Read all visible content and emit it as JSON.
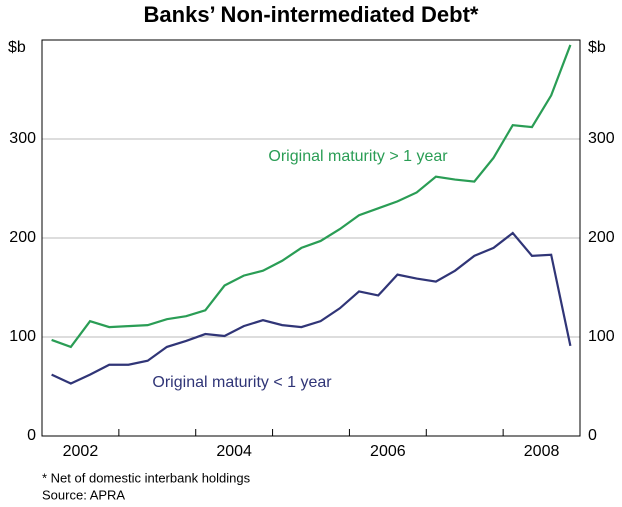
{
  "chart_data": {
    "type": "line",
    "title": "Banks’ Non-intermediated Debt*",
    "unit_label": "$b",
    "x": [
      2002.125,
      2002.375,
      2002.625,
      2002.875,
      2003.125,
      2003.375,
      2003.625,
      2003.875,
      2004.125,
      2004.375,
      2004.625,
      2004.875,
      2005.125,
      2005.375,
      2005.625,
      2005.875,
      2006.125,
      2006.375,
      2006.625,
      2006.875,
      2007.125,
      2007.375,
      2007.625,
      2007.875,
      2008.125,
      2008.375,
      2008.625,
      2008.875
    ],
    "series": [
      {
        "name": "Original maturity > 1 year",
        "color": "#2a9d55",
        "values": [
          97,
          90,
          116,
          110,
          111,
          112,
          118,
          121,
          127,
          152,
          162,
          167,
          177,
          190,
          197,
          209,
          223,
          230,
          237,
          246,
          262,
          259,
          257,
          281,
          314,
          312,
          344,
          395
        ]
      },
      {
        "name": "Original maturity < 1 year",
        "color": "#303577",
        "values": [
          62,
          53,
          62,
          72,
          72,
          76,
          90,
          96,
          103,
          101,
          111,
          117,
          112,
          110,
          116,
          129,
          146,
          142,
          163,
          159,
          156,
          167,
          182,
          190,
          205,
          182,
          183,
          91
        ]
      }
    ],
    "xlim": [
      2002,
      2009
    ],
    "xticks": [
      2002,
      2003,
      2004,
      2005,
      2006,
      2007,
      2008,
      2009
    ],
    "year_labels": [
      2002,
      2004,
      2006,
      2008
    ],
    "ylim": [
      0,
      400
    ],
    "yticks": [
      0,
      100,
      200,
      300
    ],
    "grid": true,
    "footnotes": [
      "*   Net of domestic interbank holdings",
      "Source: APRA"
    ]
  }
}
